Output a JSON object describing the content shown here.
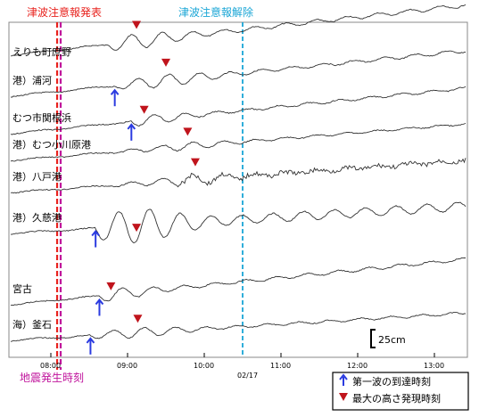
{
  "chart_data": {
    "type": "line",
    "annotations": {
      "warning_issued": "津波注意報発表",
      "warning_lifted": "津波注意報解除",
      "quake_time": "地震発生時刻"
    },
    "x_ticks": [
      "08:00",
      "09:00",
      "10:00",
      "11:00",
      "12:00",
      "13:00"
    ],
    "date_label": "02/17",
    "scale_label": "25cm",
    "legend": {
      "first_wave": "第一波の到達時刻",
      "max_height": "最大の高さ発現時刻"
    },
    "event_times": {
      "quake": "08:07",
      "warning_issued": "08:07",
      "warning_lifted": "10:30"
    },
    "series": [
      {
        "name": "えりも町庶野",
        "first_wave": null,
        "max_time": "09:07"
      },
      {
        "name": "港）浦河",
        "first_wave": "08:50",
        "max_time": "09:30"
      },
      {
        "name": "むつ市関根浜",
        "first_wave": "09:03",
        "max_time": "09:13"
      },
      {
        "name": "港）むつ小川原港",
        "first_wave": null,
        "max_time": "09:47"
      },
      {
        "name": "港）八戸港",
        "first_wave": null,
        "max_time": "09:53"
      },
      {
        "name": "港）久慈港",
        "first_wave": "08:35",
        "max_time": "09:07"
      },
      {
        "name": "宮古",
        "first_wave": "08:38",
        "max_time": "08:47"
      },
      {
        "name": "海）釜石",
        "first_wave": "08:31",
        "max_time": "09:08"
      }
    ],
    "colors": {
      "warning_issued": "#e8231e",
      "warning_lifted": "#1aa6d6",
      "quake": "#c0149c",
      "first_wave_arrow": "#2b3be0",
      "max_marker": "#c0141c"
    }
  }
}
